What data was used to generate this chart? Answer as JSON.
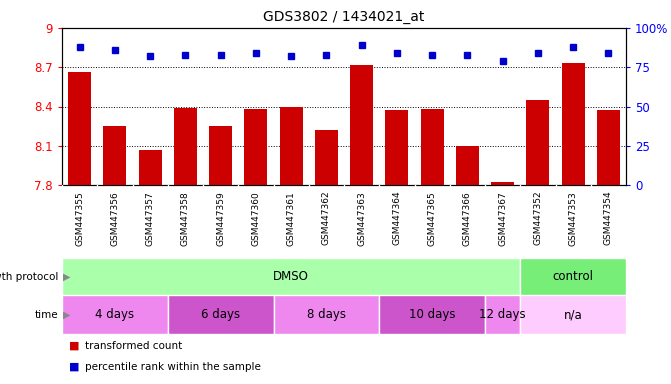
{
  "title": "GDS3802 / 1434021_at",
  "samples": [
    "GSM447355",
    "GSM447356",
    "GSM447357",
    "GSM447358",
    "GSM447359",
    "GSM447360",
    "GSM447361",
    "GSM447362",
    "GSM447363",
    "GSM447364",
    "GSM447365",
    "GSM447366",
    "GSM447367",
    "GSM447352",
    "GSM447353",
    "GSM447354"
  ],
  "bar_values": [
    8.66,
    8.25,
    8.07,
    8.39,
    8.25,
    8.38,
    8.4,
    8.22,
    8.72,
    8.37,
    8.38,
    8.1,
    7.82,
    8.45,
    8.73,
    8.37
  ],
  "percentile_values": [
    88,
    86,
    82,
    83,
    83,
    84,
    82,
    83,
    89,
    84,
    83,
    83,
    79,
    84,
    88,
    84
  ],
  "bar_color": "#cc0000",
  "percentile_color": "#0000cc",
  "ylim_left": [
    7.8,
    9.0
  ],
  "ylim_right": [
    0,
    100
  ],
  "yticks_left": [
    7.8,
    8.1,
    8.4,
    8.7,
    9.0
  ],
  "yticks_right": [
    0,
    25,
    50,
    75,
    100
  ],
  "ytick_labels_left": [
    "7.8",
    "8.1",
    "8.4",
    "8.7",
    "9"
  ],
  "ytick_labels_right": [
    "0",
    "25",
    "50",
    "75",
    "100%"
  ],
  "hlines": [
    8.1,
    8.4,
    8.7
  ],
  "growth_protocol_label": "growth protocol",
  "growth_protocol_groups": [
    {
      "text": "DMSO",
      "start": 0,
      "end": 13,
      "color": "#aaffaa"
    },
    {
      "text": "control",
      "start": 13,
      "end": 16,
      "color": "#77ee77"
    }
  ],
  "time_label": "time",
  "time_groups": [
    {
      "text": "4 days",
      "start": 0,
      "end": 3,
      "color": "#ee88ee"
    },
    {
      "text": "6 days",
      "start": 3,
      "end": 6,
      "color": "#cc55cc"
    },
    {
      "text": "8 days",
      "start": 6,
      "end": 9,
      "color": "#ee88ee"
    },
    {
      "text": "10 days",
      "start": 9,
      "end": 12,
      "color": "#cc55cc"
    },
    {
      "text": "12 days",
      "start": 12,
      "end": 13,
      "color": "#ee88ee"
    },
    {
      "text": "n/a",
      "start": 13,
      "end": 16,
      "color": "#ffccff"
    }
  ],
  "legend": [
    {
      "color": "#cc0000",
      "label": "transformed count"
    },
    {
      "color": "#0000cc",
      "label": "percentile rank within the sample"
    }
  ],
  "axis_bg_color": "#d8d8d8",
  "label_row_bg": "#d8d8d8"
}
